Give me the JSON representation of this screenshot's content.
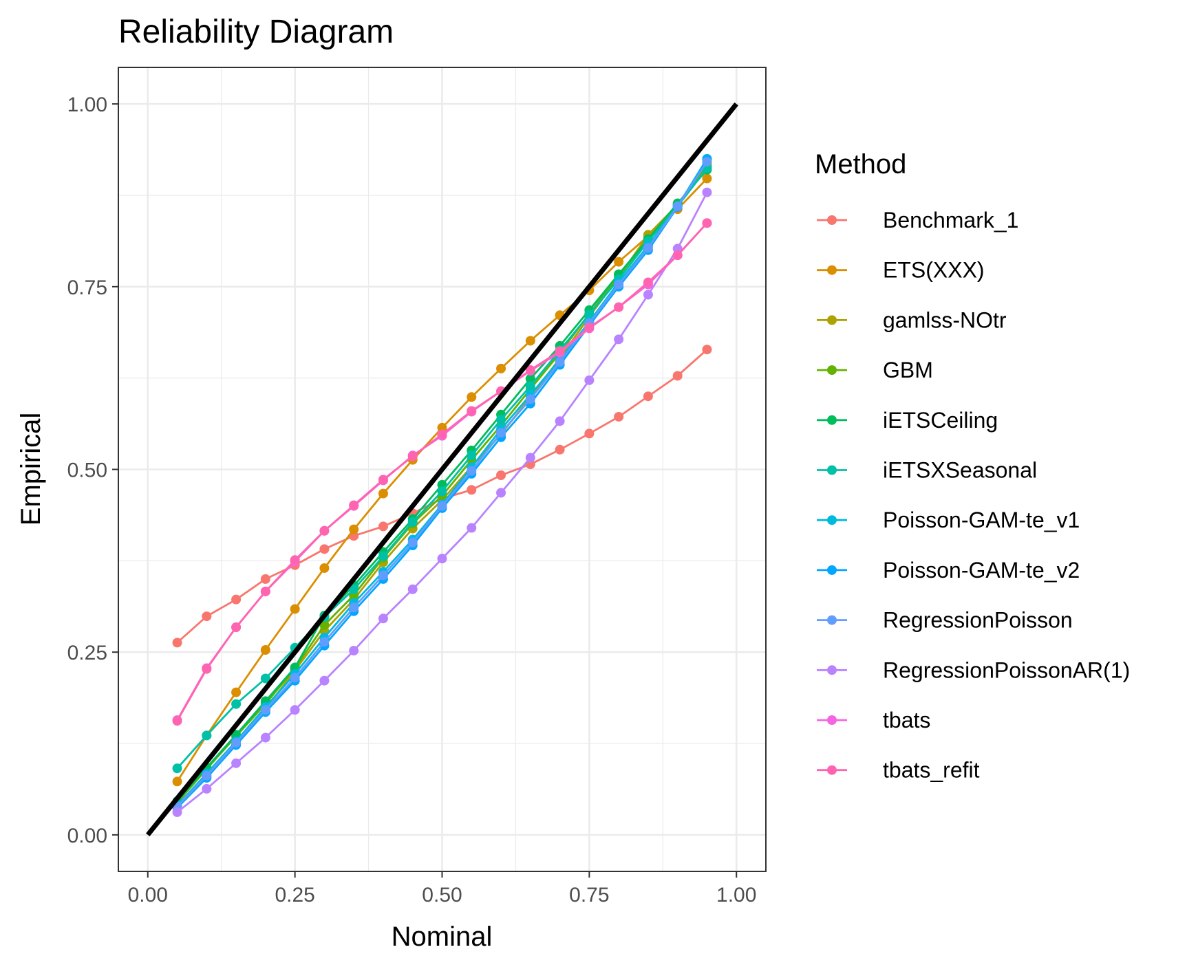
{
  "chart_data": {
    "type": "line",
    "title": "Reliability Diagram",
    "xlabel": "Nominal",
    "ylabel": "Empirical",
    "xlim": [
      -0.05,
      1.05
    ],
    "ylim": [
      -0.05,
      1.05
    ],
    "x_ticks": [
      "0.00",
      "0.25",
      "0.50",
      "0.75",
      "1.00"
    ],
    "y_ticks": [
      "0.00",
      "0.25",
      "0.50",
      "0.75",
      "1.00"
    ],
    "x_tick_values": [
      0,
      0.25,
      0.5,
      0.75,
      1
    ],
    "y_tick_values": [
      0,
      0.25,
      0.5,
      0.75,
      1
    ],
    "grid": true,
    "legend_title": "Method",
    "legend_position": "right",
    "x": [
      0.05,
      0.1,
      0.15,
      0.2,
      0.25,
      0.3,
      0.35,
      0.4,
      0.45,
      0.5,
      0.55,
      0.6,
      0.65,
      0.7,
      0.75,
      0.8,
      0.85,
      0.9,
      0.95
    ],
    "reference_line": {
      "x": [
        0,
        1
      ],
      "y": [
        0,
        1
      ],
      "color": "#000000"
    },
    "series": [
      {
        "name": "Benchmark_1",
        "color": "#F8766D",
        "values": [
          0.263,
          0.299,
          0.322,
          0.35,
          0.369,
          0.391,
          0.409,
          0.422,
          0.44,
          0.46,
          0.472,
          0.492,
          0.507,
          0.527,
          0.549,
          0.572,
          0.6,
          0.628,
          0.664
        ]
      },
      {
        "name": "ETS(XXX)",
        "color": "#DB8E00",
        "values": [
          0.073,
          0.136,
          0.195,
          0.253,
          0.309,
          0.365,
          0.418,
          0.467,
          0.513,
          0.557,
          0.599,
          0.638,
          0.676,
          0.711,
          0.745,
          0.784,
          0.819,
          0.856,
          0.898
        ]
      },
      {
        "name": "gamlss-NOtr",
        "color": "#AEA200",
        "values": [
          0.042,
          0.08,
          0.125,
          0.172,
          0.225,
          0.279,
          0.322,
          0.373,
          0.419,
          0.458,
          0.504,
          0.548,
          0.599,
          0.652,
          0.709,
          0.763,
          0.821,
          0.862,
          0.919
        ]
      },
      {
        "name": "GBM",
        "color": "#64B200",
        "values": [
          0.044,
          0.09,
          0.135,
          0.179,
          0.228,
          0.287,
          0.328,
          0.379,
          0.426,
          0.464,
          0.513,
          0.56,
          0.61,
          0.659,
          0.713,
          0.765,
          0.815,
          0.862,
          0.915
        ]
      },
      {
        "name": "iETSCeiling",
        "color": "#00BD5C",
        "values": [
          0.046,
          0.092,
          0.137,
          0.183,
          0.229,
          0.3,
          0.341,
          0.387,
          0.432,
          0.479,
          0.526,
          0.575,
          0.624,
          0.669,
          0.718,
          0.767,
          0.815,
          0.864,
          0.91
        ]
      },
      {
        "name": "iETSXSeasonal",
        "color": "#00C1A7",
        "values": [
          0.091,
          0.136,
          0.179,
          0.214,
          0.256,
          0.298,
          0.336,
          0.381,
          0.428,
          0.47,
          0.519,
          0.568,
          0.614,
          0.663,
          0.712,
          0.76,
          0.812,
          0.86,
          0.912
        ]
      },
      {
        "name": "Poisson-GAM-te_v1",
        "color": "#00BADE",
        "values": [
          0.04,
          0.084,
          0.128,
          0.175,
          0.22,
          0.27,
          0.317,
          0.36,
          0.404,
          0.452,
          0.503,
          0.555,
          0.602,
          0.65,
          0.702,
          0.756,
          0.806,
          0.86,
          0.925
        ]
      },
      {
        "name": "Poisson-GAM-te_v2",
        "color": "#00A6FF",
        "values": [
          0.037,
          0.078,
          0.123,
          0.168,
          0.211,
          0.259,
          0.306,
          0.35,
          0.396,
          0.447,
          0.494,
          0.544,
          0.59,
          0.643,
          0.697,
          0.75,
          0.8,
          0.859,
          0.924
        ]
      },
      {
        "name": "RegressionPoisson",
        "color": "#619CFF",
        "values": [
          0.039,
          0.081,
          0.126,
          0.171,
          0.215,
          0.264,
          0.311,
          0.355,
          0.4,
          0.45,
          0.498,
          0.55,
          0.596,
          0.647,
          0.7,
          0.753,
          0.803,
          0.86,
          0.921
        ]
      },
      {
        "name": "RegressionPoissonAR(1)",
        "color": "#B983FF",
        "values": [
          0.031,
          0.063,
          0.098,
          0.133,
          0.171,
          0.211,
          0.252,
          0.296,
          0.336,
          0.378,
          0.42,
          0.468,
          0.516,
          0.566,
          0.622,
          0.678,
          0.739,
          0.802,
          0.879
        ]
      },
      {
        "name": "tbats",
        "color": "#F564E3",
        "values": [
          0.157,
          0.228,
          0.284,
          0.333,
          0.374,
          0.416,
          0.45,
          0.485,
          0.519,
          0.546,
          0.579,
          0.607,
          0.635,
          0.66,
          0.693,
          0.722,
          0.753,
          0.793,
          0.837
        ]
      },
      {
        "name": "tbats_refit",
        "color": "#FF64B0",
        "values": [
          0.156,
          0.227,
          0.284,
          0.333,
          0.376,
          0.416,
          0.451,
          0.486,
          0.518,
          0.548,
          0.58,
          0.607,
          0.636,
          0.662,
          0.694,
          0.722,
          0.756,
          0.793,
          0.837
        ]
      }
    ]
  }
}
